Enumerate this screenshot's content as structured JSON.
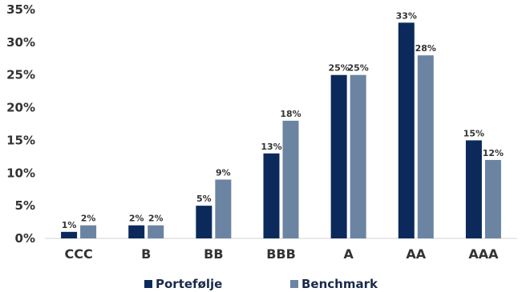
{
  "chart_data": {
    "type": "bar",
    "title": "",
    "xlabel": "",
    "ylabel": "",
    "categories": [
      "CCC",
      "B",
      "BB",
      "BBB",
      "A",
      "AA",
      "AAA"
    ],
    "series": [
      {
        "name": "Portefølje",
        "values": [
          1,
          2,
          5,
          13,
          25,
          33,
          15
        ],
        "labels": [
          "1%",
          "2%",
          "5%",
          "13%",
          "25%",
          "33%",
          "15%"
        ],
        "color": "#0b2a5b"
      },
      {
        "name": "Benchmark",
        "values": [
          2,
          2,
          9,
          18,
          25,
          28,
          12
        ],
        "labels": [
          "2%",
          "2%",
          "9%",
          "18%",
          "25%",
          "28%",
          "12%"
        ],
        "color": "#6b84a2"
      }
    ],
    "ylim": [
      0,
      35
    ],
    "yticks": [
      0,
      5,
      10,
      15,
      20,
      25,
      30,
      35
    ],
    "ytick_labels": [
      "0%",
      "5%",
      "10%",
      "15%",
      "20%",
      "25%",
      "30%",
      "35%"
    ],
    "grid": false,
    "legend_position": "bottom-center",
    "axis_color": "#d0d0d0"
  }
}
